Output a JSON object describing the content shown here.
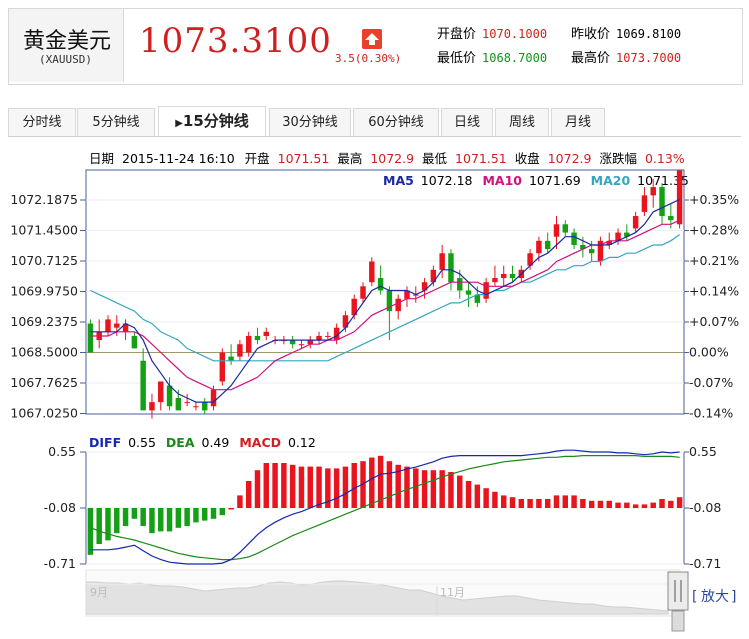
{
  "header": {
    "name": "黄金美元",
    "code": "(XAUUSD)",
    "price": "1073.3100",
    "change": "3.5(0.30%)",
    "open_label": "开盘价",
    "open_value": "1070.1000",
    "prev_close_label": "昨收价",
    "prev_close_value": "1069.8100",
    "low_label": "最低价",
    "low_value": "1068.7000",
    "high_label": "最高价",
    "high_value": "1073.7000"
  },
  "tabs": [
    "分时线",
    "5分钟线",
    "15分钟线",
    "30分钟线",
    "60分钟线",
    "日线",
    "周线",
    "月线"
  ],
  "active_tab": 2,
  "colors": {
    "up": "#e8141e",
    "down": "#14a014",
    "ma5": "#1a2aa0",
    "ma10": "#d0127c",
    "ma20": "#34a6c2",
    "diff": "#1428b4",
    "dea": "#1a8a1a",
    "price": "#d01f1f"
  },
  "info": {
    "date_label": "日期",
    "date_value": "2015-11-24 16:10",
    "open_label": "开盘",
    "open_value": "1071.51",
    "high_label": "最高",
    "high_value": "1072.9",
    "low_label": "最低",
    "low_value": "1071.51",
    "close_label": "收盘",
    "close_value": "1072.9",
    "chg_label": "涨跌幅",
    "chg_value": "0.13%"
  },
  "ma": {
    "ma5_label": "MA5",
    "ma5": "1072.18",
    "ma10_label": "MA10",
    "ma10": "1071.69",
    "ma20_label": "MA20",
    "ma20": "1071.35"
  },
  "macd_info": {
    "diff_label": "DIFF",
    "diff": "0.55",
    "dea_label": "DEA",
    "dea": "0.49",
    "macd_label": "MACD",
    "macd": "0.12"
  },
  "nav": {
    "month1": "9月",
    "month2": "11月",
    "zoom": "放大"
  },
  "chart_data": [
    {
      "type": "candlestick",
      "ylim": [
        1067.025,
        1072.925
      ],
      "y_ticks": [
        "1072.1875",
        "1071.4500",
        "1070.7125",
        "1069.9750",
        "1069.2375",
        "1068.5000",
        "1067.7625",
        "1067.0250"
      ],
      "pct_ticks": [
        "+0.35%",
        "+0.28%",
        "+0.21%",
        "+0.14%",
        "+0.07%",
        "0.00%",
        "-0.07%",
        "-0.14%"
      ],
      "baseline": 1068.5,
      "ohlc": [
        [
          1069.2,
          1069.3,
          1068.5,
          1068.5
        ],
        [
          1068.8,
          1069.3,
          1068.6,
          1069.0
        ],
        [
          1069.0,
          1069.4,
          1068.9,
          1069.3
        ],
        [
          1069.1,
          1069.4,
          1068.9,
          1069.2
        ],
        [
          1069.0,
          1069.3,
          1068.8,
          1069.2
        ],
        [
          1068.9,
          1069.0,
          1068.6,
          1068.6
        ],
        [
          1068.3,
          1068.6,
          1067.1,
          1067.1
        ],
        [
          1067.1,
          1067.5,
          1066.9,
          1067.3
        ],
        [
          1067.3,
          1067.8,
          1067.1,
          1067.8
        ],
        [
          1067.7,
          1067.9,
          1067.1,
          1067.2
        ],
        [
          1067.4,
          1067.6,
          1067.1,
          1067.1
        ],
        [
          1067.3,
          1067.5,
          1067.2,
          1067.3
        ],
        [
          1067.2,
          1067.3,
          1067.1,
          1067.2
        ],
        [
          1067.3,
          1067.4,
          1067.0,
          1067.1
        ],
        [
          1067.2,
          1067.7,
          1067.1,
          1067.6
        ],
        [
          1067.8,
          1068.6,
          1067.7,
          1068.5
        ],
        [
          1068.4,
          1068.7,
          1068.2,
          1068.3
        ],
        [
          1068.4,
          1068.8,
          1068.3,
          1068.7
        ],
        [
          1068.5,
          1069.0,
          1068.4,
          1068.9
        ],
        [
          1068.9,
          1069.1,
          1068.7,
          1068.8
        ],
        [
          1068.9,
          1069.1,
          1068.8,
          1069.0
        ],
        [
          1068.8,
          1068.9,
          1068.7,
          1068.8
        ],
        [
          1068.8,
          1068.9,
          1068.7,
          1068.8
        ],
        [
          1068.8,
          1068.9,
          1068.6,
          1068.7
        ],
        [
          1068.7,
          1068.8,
          1068.6,
          1068.7
        ],
        [
          1068.7,
          1068.9,
          1068.6,
          1068.8
        ],
        [
          1068.8,
          1069.0,
          1068.7,
          1068.9
        ],
        [
          1068.9,
          1069.0,
          1068.8,
          1068.9
        ],
        [
          1068.8,
          1069.2,
          1068.7,
          1069.1
        ],
        [
          1069.1,
          1069.5,
          1069.0,
          1069.4
        ],
        [
          1069.4,
          1069.9,
          1069.3,
          1069.8
        ],
        [
          1069.8,
          1070.2,
          1069.7,
          1070.1
        ],
        [
          1070.2,
          1070.8,
          1070.1,
          1070.7
        ],
        [
          1070.3,
          1070.6,
          1069.9,
          1070.0
        ],
        [
          1070.0,
          1070.1,
          1068.8,
          1069.5
        ],
        [
          1069.5,
          1069.9,
          1069.3,
          1069.8
        ],
        [
          1069.8,
          1070.1,
          1069.6,
          1070.0
        ],
        [
          1069.9,
          1070.1,
          1069.7,
          1069.9
        ],
        [
          1070.0,
          1070.3,
          1069.8,
          1070.2
        ],
        [
          1070.2,
          1070.6,
          1070.1,
          1070.5
        ],
        [
          1070.5,
          1071.1,
          1070.3,
          1070.9
        ],
        [
          1070.9,
          1071.0,
          1070.0,
          1070.2
        ],
        [
          1070.3,
          1070.5,
          1069.8,
          1070.0
        ],
        [
          1070.0,
          1070.2,
          1069.6,
          1069.9
        ],
        [
          1069.9,
          1070.1,
          1069.6,
          1069.7
        ],
        [
          1069.8,
          1070.3,
          1069.7,
          1070.2
        ],
        [
          1070.2,
          1070.6,
          1070.1,
          1070.3
        ],
        [
          1070.3,
          1070.6,
          1070.1,
          1070.4
        ],
        [
          1070.4,
          1070.6,
          1070.2,
          1070.3
        ],
        [
          1070.3,
          1070.6,
          1070.2,
          1070.5
        ],
        [
          1070.6,
          1071.0,
          1070.5,
          1070.9
        ],
        [
          1070.9,
          1071.3,
          1070.7,
          1071.2
        ],
        [
          1071.2,
          1071.4,
          1070.9,
          1071.0
        ],
        [
          1071.3,
          1071.8,
          1071.0,
          1071.6
        ],
        [
          1071.6,
          1071.7,
          1071.3,
          1071.4
        ],
        [
          1071.4,
          1071.5,
          1071.0,
          1071.1
        ],
        [
          1071.1,
          1071.3,
          1070.8,
          1071.0
        ],
        [
          1071.0,
          1071.2,
          1070.7,
          1070.9
        ],
        [
          1070.7,
          1071.3,
          1070.6,
          1071.2
        ],
        [
          1071.1,
          1071.4,
          1071.0,
          1071.2
        ],
        [
          1071.2,
          1071.5,
          1071.1,
          1071.4
        ],
        [
          1071.4,
          1071.6,
          1071.2,
          1071.3
        ],
        [
          1071.5,
          1071.9,
          1071.4,
          1071.8
        ],
        [
          1071.9,
          1072.5,
          1071.8,
          1072.3
        ],
        [
          1072.3,
          1072.7,
          1072.0,
          1072.5
        ],
        [
          1072.5,
          1072.6,
          1071.6,
          1071.8
        ],
        [
          1071.8,
          1072.1,
          1071.5,
          1071.7
        ],
        [
          1071.6,
          1072.9,
          1071.5,
          1072.9
        ]
      ],
      "ma5": [
        1069.0,
        1069.0,
        1069.0,
        1069.0,
        1069.2,
        1069.1,
        1068.8,
        1068.3,
        1068.0,
        1067.7,
        1067.5,
        1067.4,
        1067.3,
        1067.3,
        1067.3,
        1067.5,
        1067.7,
        1068.0,
        1068.3,
        1068.6,
        1068.7,
        1068.8,
        1068.8,
        1068.8,
        1068.8,
        1068.8,
        1068.8,
        1068.8,
        1068.9,
        1069.1,
        1069.4,
        1069.7,
        1070.0,
        1070.1,
        1070.0,
        1070.0,
        1070.0,
        1069.9,
        1070.0,
        1070.2,
        1070.5,
        1070.5,
        1070.4,
        1070.2,
        1070.0,
        1069.9,
        1070.0,
        1070.1,
        1070.2,
        1070.4,
        1070.6,
        1070.8,
        1070.9,
        1071.1,
        1071.3,
        1071.3,
        1071.2,
        1071.1,
        1071.1,
        1071.1,
        1071.2,
        1071.3,
        1071.4,
        1071.6,
        1071.9,
        1072.0,
        1072.1,
        1072.2
      ],
      "ma10": [
        1068.9,
        1068.9,
        1068.9,
        1069.0,
        1069.0,
        1069.0,
        1068.9,
        1068.7,
        1068.5,
        1068.3,
        1068.1,
        1067.9,
        1067.8,
        1067.7,
        1067.6,
        1067.6,
        1067.6,
        1067.7,
        1067.8,
        1067.9,
        1068.1,
        1068.3,
        1068.4,
        1068.5,
        1068.6,
        1068.7,
        1068.7,
        1068.8,
        1068.8,
        1068.9,
        1069.0,
        1069.2,
        1069.4,
        1069.5,
        1069.6,
        1069.7,
        1069.8,
        1069.8,
        1069.9,
        1070.0,
        1070.1,
        1070.2,
        1070.2,
        1070.2,
        1070.2,
        1070.1,
        1070.1,
        1070.1,
        1070.1,
        1070.2,
        1070.3,
        1070.4,
        1070.5,
        1070.7,
        1070.8,
        1070.9,
        1071.0,
        1071.1,
        1071.1,
        1071.2,
        1071.2,
        1071.2,
        1071.3,
        1071.4,
        1071.5,
        1071.6,
        1071.6,
        1071.7
      ],
      "ma20": [
        1070.0,
        1069.9,
        1069.8,
        1069.7,
        1069.6,
        1069.5,
        1069.3,
        1069.2,
        1069.0,
        1068.9,
        1068.8,
        1068.6,
        1068.5,
        1068.4,
        1068.3,
        1068.3,
        1068.3,
        1068.3,
        1068.3,
        1068.3,
        1068.3,
        1068.3,
        1068.3,
        1068.3,
        1068.3,
        1068.3,
        1068.3,
        1068.3,
        1068.4,
        1068.5,
        1068.6,
        1068.7,
        1068.8,
        1068.9,
        1069.0,
        1069.1,
        1069.2,
        1069.3,
        1069.4,
        1069.5,
        1069.6,
        1069.7,
        1069.7,
        1069.8,
        1069.9,
        1069.9,
        1070.0,
        1070.0,
        1070.1,
        1070.2,
        1070.2,
        1070.3,
        1070.4,
        1070.5,
        1070.5,
        1070.6,
        1070.6,
        1070.7,
        1070.7,
        1070.8,
        1070.8,
        1070.9,
        1070.9,
        1071.0,
        1071.1,
        1071.1,
        1071.2,
        1071.35
      ]
    },
    {
      "type": "macd",
      "ylim": [
        -0.71,
        0.55
      ],
      "y_ticks": [
        "0.55",
        "-0.08",
        "-0.71"
      ],
      "diff": [
        -0.55,
        -0.55,
        -0.55,
        -0.54,
        -0.52,
        -0.5,
        -0.56,
        -0.62,
        -0.66,
        -0.69,
        -0.7,
        -0.71,
        -0.71,
        -0.71,
        -0.71,
        -0.7,
        -0.66,
        -0.58,
        -0.48,
        -0.38,
        -0.3,
        -0.24,
        -0.19,
        -0.15,
        -0.12,
        -0.08,
        -0.04,
        -0.01,
        0.03,
        0.08,
        0.14,
        0.19,
        0.25,
        0.3,
        0.31,
        0.33,
        0.36,
        0.38,
        0.41,
        0.44,
        0.48,
        0.5,
        0.51,
        0.51,
        0.51,
        0.51,
        0.51,
        0.51,
        0.51,
        0.51,
        0.52,
        0.53,
        0.54,
        0.56,
        0.57,
        0.57,
        0.56,
        0.55,
        0.55,
        0.55,
        0.54,
        0.54,
        0.53,
        0.52,
        0.53,
        0.55,
        0.54,
        0.55
      ],
      "dea": [
        -0.3,
        -0.34,
        -0.37,
        -0.4,
        -0.42,
        -0.44,
        -0.47,
        -0.5,
        -0.53,
        -0.56,
        -0.59,
        -0.61,
        -0.63,
        -0.64,
        -0.65,
        -0.66,
        -0.66,
        -0.65,
        -0.63,
        -0.59,
        -0.54,
        -0.49,
        -0.44,
        -0.39,
        -0.35,
        -0.31,
        -0.27,
        -0.23,
        -0.19,
        -0.15,
        -0.11,
        -0.07,
        -0.03,
        0.01,
        0.05,
        0.09,
        0.13,
        0.16,
        0.2,
        0.23,
        0.27,
        0.3,
        0.33,
        0.36,
        0.38,
        0.4,
        0.42,
        0.44,
        0.45,
        0.46,
        0.47,
        0.48,
        0.49,
        0.49,
        0.5,
        0.5,
        0.51,
        0.51,
        0.51,
        0.51,
        0.51,
        0.51,
        0.51,
        0.5,
        0.5,
        0.5,
        0.5,
        0.49
      ],
      "macd": [
        -0.52,
        -0.4,
        -0.36,
        -0.28,
        -0.2,
        -0.12,
        -0.2,
        -0.28,
        -0.26,
        -0.26,
        -0.22,
        -0.2,
        -0.16,
        -0.14,
        -0.12,
        -0.08,
        0.0,
        0.14,
        0.3,
        0.42,
        0.5,
        0.5,
        0.5,
        0.48,
        0.46,
        0.46,
        0.46,
        0.44,
        0.44,
        0.46,
        0.5,
        0.52,
        0.56,
        0.58,
        0.52,
        0.48,
        0.46,
        0.44,
        0.42,
        0.42,
        0.42,
        0.4,
        0.36,
        0.3,
        0.26,
        0.22,
        0.18,
        0.14,
        0.12,
        0.1,
        0.1,
        0.1,
        0.1,
        0.14,
        0.14,
        0.14,
        0.1,
        0.08,
        0.08,
        0.08,
        0.06,
        0.06,
        0.04,
        0.04,
        0.06,
        0.1,
        0.08,
        0.12
      ]
    }
  ]
}
